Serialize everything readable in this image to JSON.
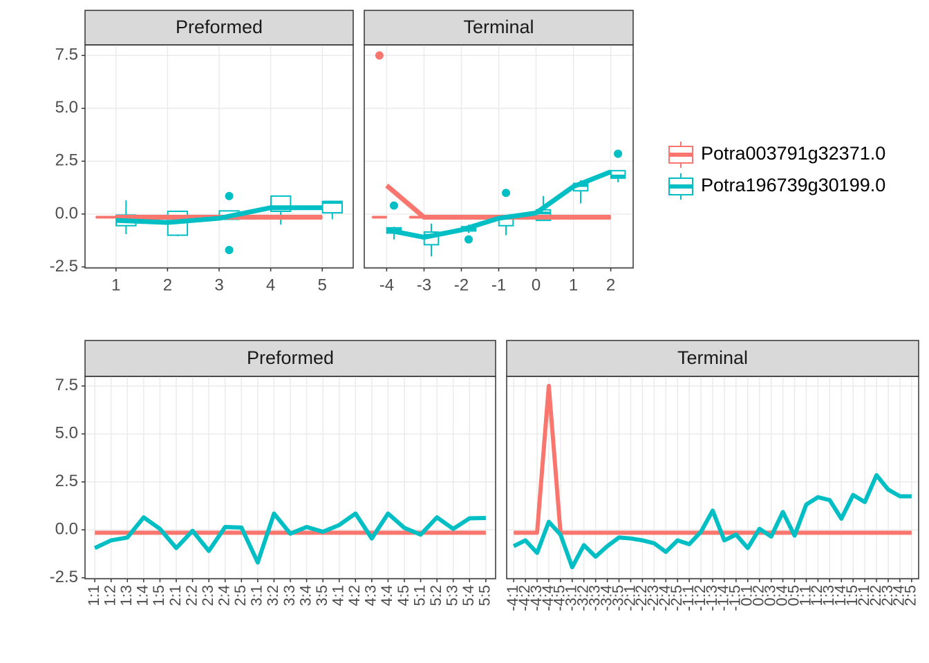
{
  "chart_data": [
    {
      "type": "box",
      "title": "Preformed",
      "x": [
        1,
        2,
        3,
        4,
        5
      ],
      "xlim": [
        0.4,
        5.6
      ],
      "xticks": [
        1,
        2,
        3,
        4,
        5
      ],
      "ylim": [
        -2.55,
        8.0
      ],
      "yticks": [
        -2.5,
        {
          "value": 0,
          "label": "0.0"
        },
        2.5,
        {
          "value": 5,
          "label": "5.0"
        },
        7.5
      ],
      "grid": true,
      "legend": "right",
      "series": [
        {
          "name": "Potra003791g32371.0",
          "color": "#F8766D",
          "mean": [
            -0.15,
            -0.15,
            -0.15,
            -0.15,
            -0.15
          ],
          "boxes": [
            [
              -0.15,
              -0.15,
              -0.15,
              -0.15,
              -0.15
            ],
            [
              -0.15,
              -0.15,
              -0.15,
              -0.15,
              -0.15
            ],
            [
              -0.15,
              -0.15,
              -0.15,
              -0.15,
              -0.15
            ],
            [
              -0.15,
              -0.15,
              -0.15,
              -0.15,
              -0.15
            ],
            [
              -0.15,
              -0.15,
              -0.15,
              -0.15,
              -0.15
            ]
          ],
          "outliers": []
        },
        {
          "name": "Potra196739g30199.0",
          "color": "#00BFC4",
          "mean": [
            -0.3,
            -0.4,
            -0.2,
            0.3,
            0.3
          ],
          "boxes": [
            [
              -0.95,
              -0.55,
              -0.3,
              -0.05,
              0.65
            ],
            [
              -1.05,
              -1.0,
              -0.35,
              0.13,
              0.13
            ],
            [
              -0.25,
              -0.25,
              -0.1,
              0.15,
              0.15
            ],
            [
              -0.5,
              0.13,
              0.3,
              0.85,
              0.85
            ],
            [
              -0.25,
              0.06,
              0.55,
              0.6,
              0.6
            ]
          ],
          "outliers": [
            [
              3,
              0.85
            ],
            [
              3,
              -1.7
            ]
          ]
        }
      ]
    },
    {
      "type": "box",
      "title": "Terminal",
      "x": [
        -4,
        -3,
        -2,
        -1,
        0,
        1,
        2
      ],
      "xlim": [
        -4.6,
        2.6
      ],
      "xticks": [
        -4,
        -3,
        -2,
        -1,
        0,
        1,
        2
      ],
      "ylim": [
        -2.55,
        8.0
      ],
      "grid": true,
      "series": [
        {
          "name": "Potra003791g32371.0",
          "color": "#F8766D",
          "mean": [
            1.35,
            -0.15,
            -0.15,
            -0.15,
            -0.15,
            -0.15,
            -0.15
          ],
          "boxes": [
            [
              -0.15,
              -0.15,
              -0.15,
              -0.15,
              -0.15
            ],
            [
              -0.15,
              -0.15,
              -0.15,
              -0.15,
              -0.15
            ],
            [
              -0.15,
              -0.15,
              -0.15,
              -0.15,
              -0.15
            ],
            [
              -0.15,
              -0.15,
              -0.15,
              -0.15,
              -0.15
            ],
            [
              -0.15,
              -0.15,
              -0.15,
              -0.15,
              -0.15
            ],
            [
              -0.15,
              -0.15,
              -0.15,
              -0.15,
              -0.15
            ],
            [
              -0.15,
              -0.15,
              -0.15,
              -0.15,
              -0.15
            ]
          ],
          "outliers": [
            [
              -4,
              7.5
            ]
          ]
        },
        {
          "name": "Potra196739g30199.0",
          "color": "#00BFC4",
          "mean": [
            -0.75,
            -1.1,
            -0.75,
            -0.2,
            0.05,
            1.3,
            2.0
          ],
          "boxes": [
            [
              -1.2,
              -0.9,
              -0.75,
              -0.65,
              -0.6
            ],
            [
              -2.0,
              -1.45,
              -1.0,
              -0.85,
              -0.45
            ],
            [
              -0.9,
              -0.8,
              -0.7,
              -0.6,
              -0.5
            ],
            [
              -1.0,
              -0.55,
              -0.2,
              -0.1,
              -0.05
            ],
            [
              -0.3,
              -0.3,
              0.05,
              0.2,
              0.85
            ],
            [
              0.5,
              1.1,
              1.35,
              1.45,
              1.6
            ],
            [
              1.5,
              1.7,
              1.8,
              2.05,
              2.05
            ]
          ],
          "outliers": [
            [
              -4,
              0.4
            ],
            [
              -2,
              -1.2
            ],
            [
              -1,
              1.0
            ],
            [
              2,
              2.85
            ]
          ]
        }
      ]
    },
    {
      "type": "line",
      "title": "Preformed",
      "categories": [
        "1:1",
        "1:2",
        "1:3",
        "1:4",
        "1:5",
        "2:1",
        "2:2",
        "2:3",
        "2:4",
        "2:5",
        "3:1",
        "3:2",
        "3:3",
        "3:4",
        "3:5",
        "4:1",
        "4:2",
        "4:3",
        "4:4",
        "4:5",
        "5:1",
        "5:2",
        "5:3",
        "5:4",
        "5:5"
      ],
      "ylim": [
        -2.55,
        8.0
      ],
      "yticks": [
        -2.5,
        {
          "value": 0,
          "label": "0.0"
        },
        2.5,
        {
          "value": 5,
          "label": "5.0"
        },
        7.5
      ],
      "grid": true,
      "series": [
        {
          "name": "Potra003791g32371.0",
          "color": "#F8766D",
          "values": [
            -0.15,
            -0.15,
            -0.15,
            -0.15,
            -0.15,
            -0.15,
            -0.15,
            -0.15,
            -0.15,
            -0.15,
            -0.15,
            -0.15,
            -0.15,
            -0.15,
            -0.15,
            -0.15,
            -0.15,
            -0.15,
            -0.15,
            -0.15,
            -0.15,
            -0.15,
            -0.15,
            -0.15,
            -0.15
          ]
        },
        {
          "name": "Potra196739g30199.0",
          "color": "#00BFC4",
          "values": [
            -0.95,
            -0.55,
            -0.4,
            0.65,
            0.05,
            -0.95,
            -0.05,
            -1.1,
            0.15,
            0.12,
            -1.7,
            0.85,
            -0.2,
            0.15,
            -0.1,
            0.25,
            0.85,
            -0.45,
            0.85,
            0.1,
            -0.25,
            0.65,
            0.05,
            0.6,
            0.62
          ]
        }
      ]
    },
    {
      "type": "line",
      "title": "Terminal",
      "categories": [
        "-4:1",
        "-4:2",
        "-4:3",
        "-4:4",
        "-4:5",
        "-3:1",
        "-3:2",
        "-3:3",
        "-3:4",
        "-3:5",
        "-2:1",
        "-2:2",
        "-2:3",
        "-2:4",
        "-2:5",
        "-1:1",
        "-1:2",
        "-1:3",
        "-1:4",
        "-1:5",
        "0:1",
        "0:2",
        "0:3",
        "0:4",
        "0:5",
        "1:1",
        "1:2",
        "1:3",
        "1:4",
        "1:5",
        "2:1",
        "2:2",
        "2:3",
        "2:4",
        "2:5"
      ],
      "ylim": [
        -2.55,
        8.0
      ],
      "grid": true,
      "series": [
        {
          "name": "Potra003791g32371.0",
          "color": "#F8766D",
          "values": [
            -0.15,
            -0.15,
            -0.15,
            7.5,
            -0.15,
            -0.15,
            -0.15,
            -0.15,
            -0.15,
            -0.15,
            -0.15,
            -0.15,
            -0.15,
            -0.15,
            -0.15,
            -0.15,
            -0.15,
            -0.15,
            -0.15,
            -0.15,
            -0.15,
            -0.15,
            -0.15,
            -0.15,
            -0.15,
            -0.15,
            -0.15,
            -0.15,
            -0.15,
            -0.15,
            -0.15,
            -0.15,
            -0.15,
            -0.15,
            -0.15
          ]
        },
        {
          "name": "Potra196739g30199.0",
          "color": "#00BFC4",
          "values": [
            -0.85,
            -0.55,
            -1.2,
            0.42,
            -0.25,
            -1.95,
            -0.8,
            -1.4,
            -0.85,
            -0.4,
            -0.45,
            -0.55,
            -0.7,
            -1.15,
            -0.55,
            -0.75,
            -0.1,
            1.0,
            -0.55,
            -0.25,
            -0.95,
            0.05,
            -0.35,
            0.93,
            -0.3,
            1.32,
            1.7,
            1.55,
            0.58,
            1.82,
            1.45,
            2.85,
            2.1,
            1.75,
            1.75
          ]
        }
      ]
    }
  ]
}
